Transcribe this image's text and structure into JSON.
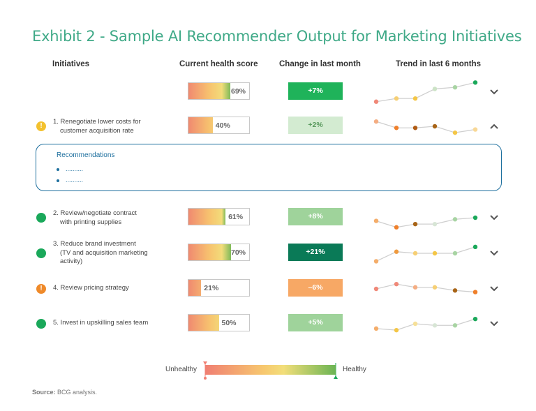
{
  "title": "Exhibit 2 - Sample AI Recommender Output for Marketing Initiatives",
  "headers": {
    "initiatives": "Initiatives",
    "health": "Current health score",
    "change": "Change in last month",
    "trend": "Trend in last 6 months"
  },
  "chart_data": {
    "type": "table",
    "columns": [
      "Initiatives",
      "Current health score",
      "Change in last month",
      "Trend in last 6 months"
    ],
    "rows": [
      {
        "initiative": "",
        "health": 69,
        "health_label": "69%",
        "change": 7,
        "change_label": "+7%",
        "trend": [
          1,
          3,
          3,
          9,
          10,
          13
        ],
        "trend_colors": [
          "#f08878",
          "#f6cf74",
          "#f4c646",
          "#cce3c6",
          "#a8d4a3",
          "#1aa85a"
        ],
        "expanded": false
      },
      {
        "initiative": "1. Renegotiate lower costs for customer acquisition rate",
        "health": 40,
        "health_label": "40%",
        "change": 2,
        "change_label": "+2%",
        "trend": [
          10,
          6,
          6,
          7,
          3,
          5
        ],
        "trend_colors": [
          "#f4ad82",
          "#ef7f2a",
          "#b05c14",
          "#a86416",
          "#f4c646",
          "#f8d896"
        ],
        "status": "warning",
        "expanded": true
      },
      {
        "initiative": "2. Review/negotiate contract with printing supplies",
        "health": 61,
        "health_label": "61%",
        "change": 8,
        "change_label": "+8%",
        "trend": [
          5,
          1,
          3,
          3,
          6,
          7
        ],
        "trend_colors": [
          "#f4ad6a",
          "#ef7f2a",
          "#a86416",
          "#d7e5d5",
          "#a8d4a3",
          "#1aa85a"
        ],
        "status": "healthy",
        "expanded": false
      },
      {
        "initiative": "3. Reduce brand investment (TV and acquisition marketing activity)",
        "health": 70,
        "health_label": "70%",
        "change": 21,
        "change_label": "+21%",
        "trend": [
          2,
          8,
          7,
          7,
          7,
          11
        ],
        "trend_colors": [
          "#f4ad6a",
          "#ef9a3e",
          "#f6cf74",
          "#f4c646",
          "#a8d4a3",
          "#1aa85a"
        ],
        "status": "healthy",
        "expanded": false
      },
      {
        "initiative": "4. Review pricing strategy",
        "health": 21,
        "health_label": "21%",
        "change": -6,
        "change_label": "–6%",
        "trend": [
          7,
          10,
          8,
          8,
          6,
          5
        ],
        "trend_colors": [
          "#f08878",
          "#f08878",
          "#f4ad82",
          "#f6cf74",
          "#a86416",
          "#ef7f2a"
        ],
        "status": "warning-orange",
        "expanded": false
      },
      {
        "initiative": "5. Invest in upskilling sales team",
        "health": 50,
        "health_label": "50%",
        "change": 5,
        "change_label": "+5%",
        "trend": [
          4,
          3,
          7,
          6,
          6,
          10
        ],
        "trend_colors": [
          "#f4ad6a",
          "#f4c646",
          "#f6e098",
          "#d7e5d5",
          "#a8d4a3",
          "#1aa85a"
        ],
        "status": "healthy",
        "expanded": false
      }
    ],
    "legend": {
      "low": "Unhealthy",
      "high": "Healthy"
    }
  },
  "recommendations": {
    "title": "Recommendations",
    "items": [
      "..........",
      ".........."
    ]
  },
  "labels": {
    "row1_l1": "1. Renegotiate lower costs for",
    "row1_l2": "customer acquisition rate",
    "row2_l1": "2. Review/negotiate contract",
    "row2_l2": "with printing supplies",
    "row3_l1": "3. Reduce brand investment",
    "row3_l2": "(TV and acquisition marketing",
    "row3_l3": "activity)",
    "row4_l1": "4. Review pricing strategy",
    "row5_l1": "5. Invest in upskilling sales team",
    "status_warning": "!"
  },
  "colors": {
    "title": "#3fa987",
    "recommendations": "#1d6f9e",
    "healthy": "#1aa85a",
    "warning": "#f3c12e",
    "warning_orange": "#ef8a2a"
  },
  "source": {
    "label": "Source:",
    "text": "BCG analysis."
  }
}
